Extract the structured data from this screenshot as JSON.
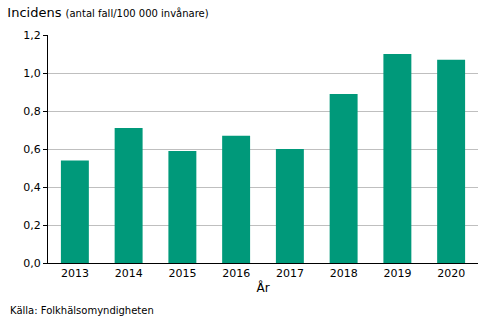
{
  "chart_data": {
    "type": "bar",
    "title": "Incidens",
    "subtitle": "(antal fall/100 000 invånare)",
    "x_label": "År",
    "categories": [
      "2013",
      "2014",
      "2015",
      "2016",
      "2017",
      "2018",
      "2019",
      "2020"
    ],
    "values": [
      0.54,
      0.71,
      0.59,
      0.67,
      0.6,
      0.89,
      1.1,
      1.07
    ],
    "color": "#00997a",
    "ylim": [
      0,
      1.2
    ],
    "yticks": [
      {
        "value": 0,
        "label": "0,0"
      },
      {
        "value": 0.2,
        "label": "0,2"
      },
      {
        "value": 0.4,
        "label": "0,4"
      },
      {
        "value": 0.6,
        "label": "0,6"
      },
      {
        "value": 0.8,
        "label": "0,8"
      },
      {
        "value": 1.0,
        "label": "1,0"
      },
      {
        "value": 1.2,
        "label": "1,2"
      }
    ],
    "grid": true,
    "annotations": [
      "Källa: Folkhälsomyndigheten"
    ]
  }
}
